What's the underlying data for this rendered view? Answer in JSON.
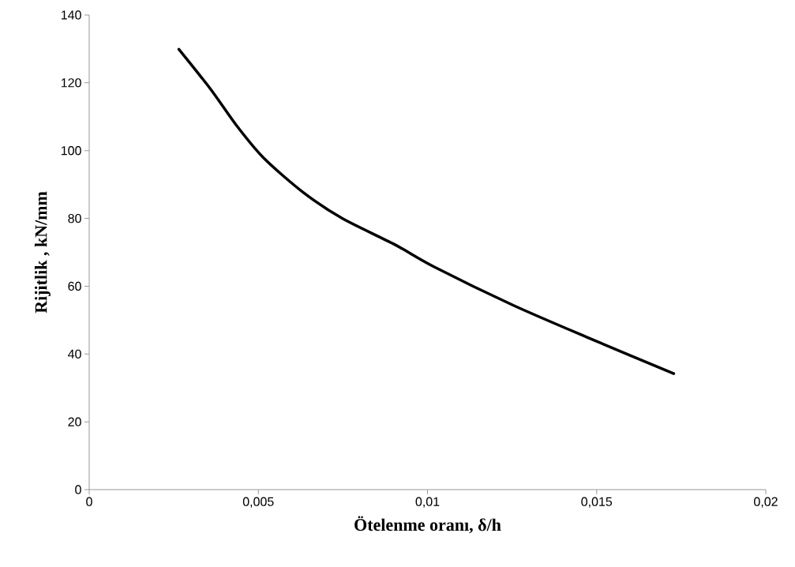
{
  "chart_data": {
    "type": "line",
    "xlabel": "Ötelenme oranı, δ/h",
    "ylabel": "Rijitlik , kN/mm",
    "x": [
      0.00265,
      0.00359,
      0.00437,
      0.00515,
      0.00631,
      0.00748,
      0.00903,
      0.0102,
      0.01253,
      0.01487,
      0.01728
    ],
    "series": [
      {
        "color": "#000000",
        "values": [
          129.9,
          118.1,
          107.2,
          97.9,
          87.8,
          80.0,
          72.3,
          65.7,
          54.4,
          44.3,
          34.2
        ]
      }
    ],
    "xlim": [
      0,
      0.02
    ],
    "ylim": [
      0,
      140
    ],
    "xticks": [
      0,
      {
        "value": 0.005,
        "label": "0,005"
      },
      {
        "value": 0.01,
        "label": "0,01"
      },
      {
        "value": 0.015,
        "label": "0,015"
      },
      {
        "value": 0.02,
        "label": "0,02"
      }
    ],
    "yticks": [
      0,
      20,
      40,
      60,
      80,
      100,
      120,
      140
    ],
    "grid": false,
    "legend": false,
    "marker": "none",
    "line_style": "solid"
  }
}
